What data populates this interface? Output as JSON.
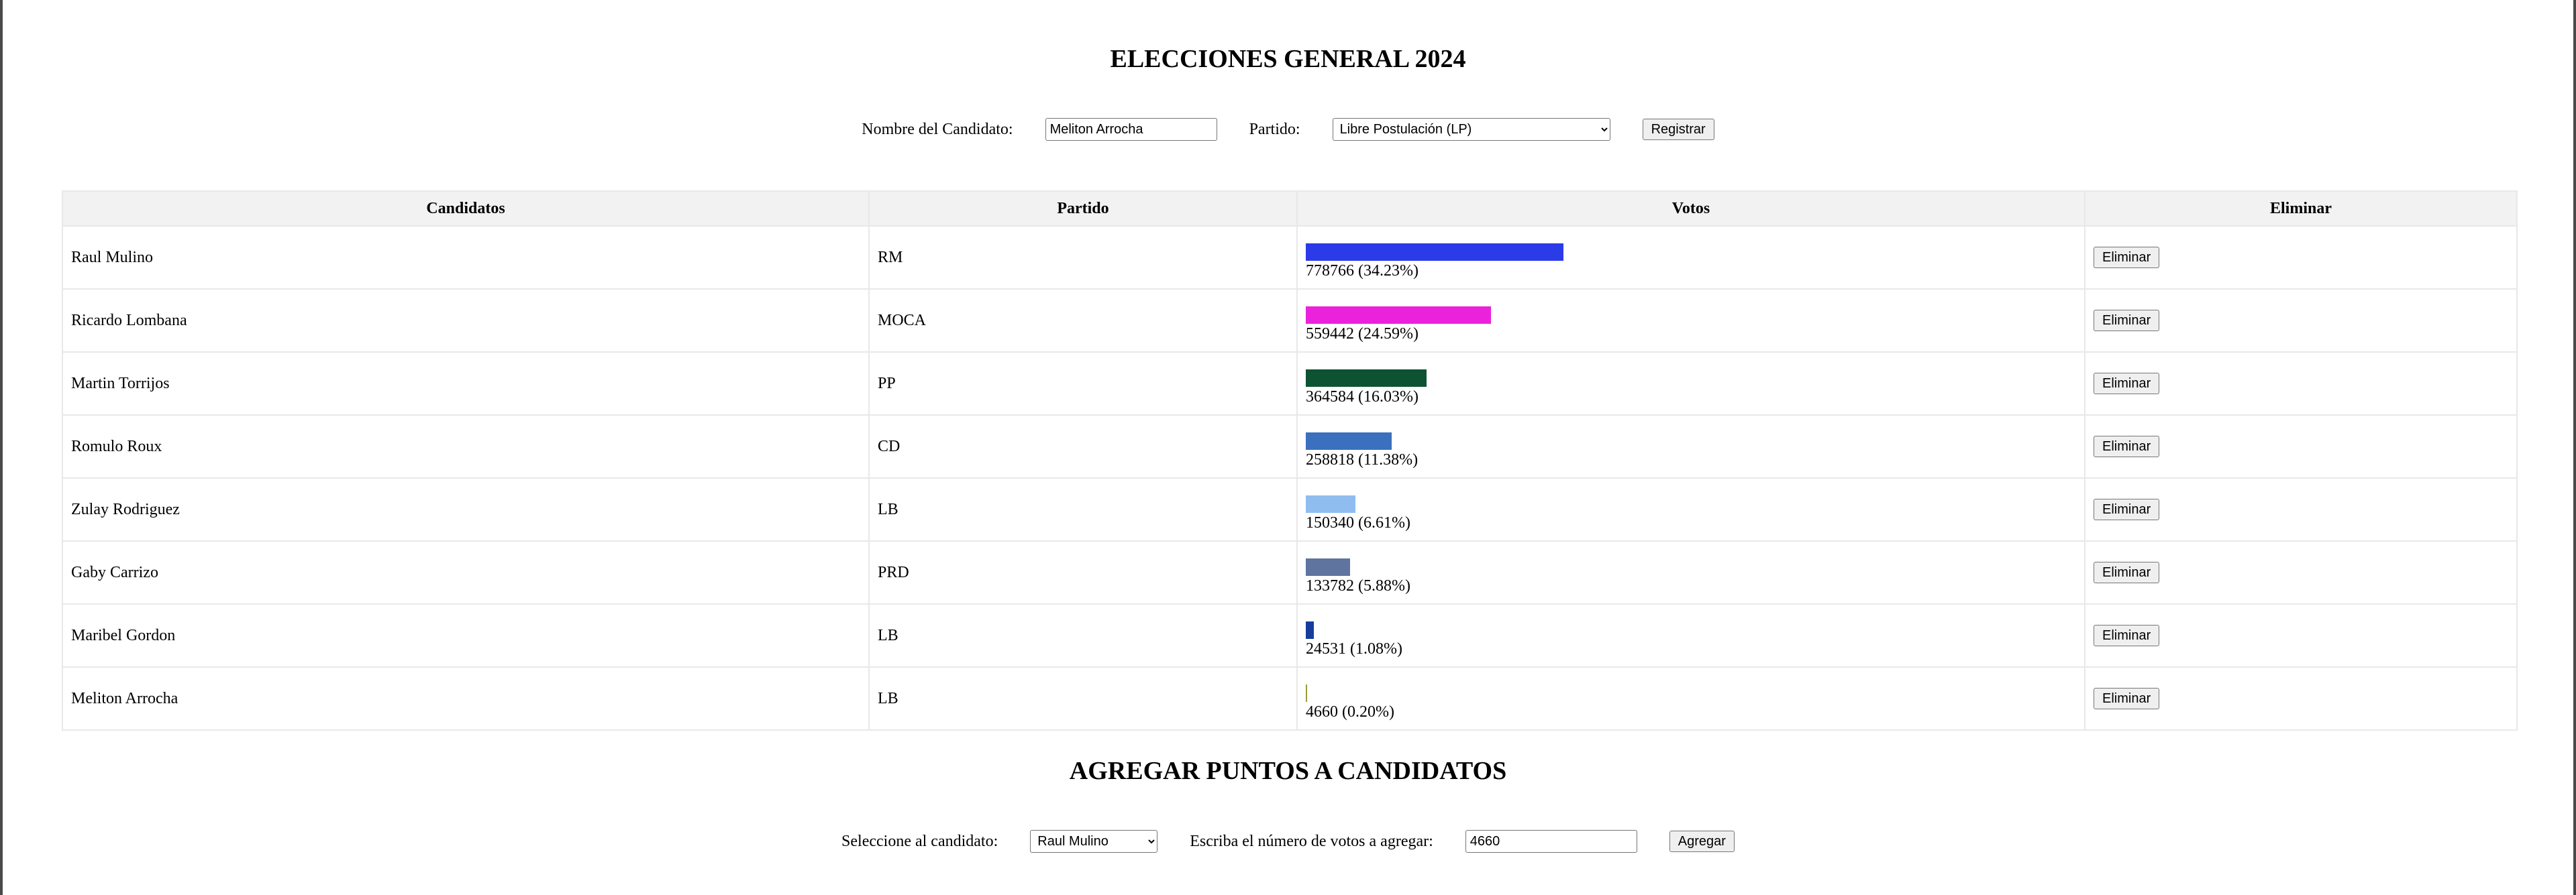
{
  "header": {
    "title": "ELECCIONES GENERAL 2024"
  },
  "register_form": {
    "name_label": "Nombre del Candidato:",
    "name_value": "Meliton Arrocha",
    "party_label": "Partido:",
    "party_selected": "Libre Postulación (LP)",
    "submit_label": "Registrar"
  },
  "table": {
    "headers": [
      "Candidatos",
      "Partido",
      "Votos",
      "Eliminar"
    ],
    "delete_label": "Eliminar",
    "rows": [
      {
        "name": "Raul Mulino",
        "party": "RM",
        "votes_text": "778766 (34.23%)",
        "share": 34.23,
        "color": "#2b3be8"
      },
      {
        "name": "Ricardo Lombana",
        "party": "MOCA",
        "votes_text": "559442 (24.59%)",
        "share": 24.59,
        "color": "#ea22dc"
      },
      {
        "name": "Martin Torrijos",
        "party": "PP",
        "votes_text": "364584 (16.03%)",
        "share": 16.03,
        "color": "#0e5234"
      },
      {
        "name": "Romulo Roux",
        "party": "CD",
        "votes_text": "258818 (11.38%)",
        "share": 11.38,
        "color": "#3b70bf"
      },
      {
        "name": "Zulay Rodriguez",
        "party": "LB",
        "votes_text": "150340 (6.61%)",
        "share": 6.61,
        "color": "#8fbdf0"
      },
      {
        "name": "Gaby Carrizo",
        "party": "PRD",
        "votes_text": "133782 (5.88%)",
        "share": 5.88,
        "color": "#5f749e"
      },
      {
        "name": "Maribel Gordon",
        "party": "LB",
        "votes_text": "24531 (1.08%)",
        "share": 1.08,
        "color": "#163c9c"
      },
      {
        "name": "Meliton Arrocha",
        "party": "LB",
        "votes_text": "4660 (0.20%)",
        "share": 0.2,
        "color": "#9b9e37"
      }
    ]
  },
  "add_section": {
    "title": "AGREGAR PUNTOS A CANDIDATOS",
    "candidate_label": "Seleccione al candidato:",
    "candidate_selected": "Raul Mulino",
    "votes_label": "Escriba el número de votos a agregar:",
    "votes_value": "4660",
    "submit_label": "Agregar"
  }
}
